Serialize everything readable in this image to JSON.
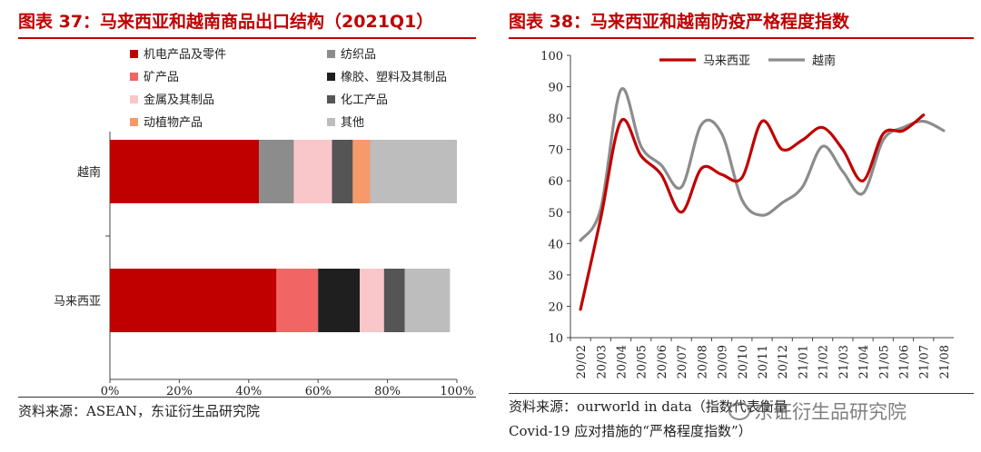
{
  "left_panel": {
    "title": "图表 37：马来西亚和越南商品出口结构（2021Q1）",
    "source": "资料来源：ASEAN，东证衍生品研究院"
  },
  "right_panel": {
    "title": "图表 38：马来西亚和越南防疫严格程度指数",
    "source_line1": "资料来源：ourworld in data（指数代表衡量",
    "source_line2": "Covid-19 应对措施的“严格程度指数”）",
    "watermark": "东证衍生品研究院"
  },
  "chart_data": [
    {
      "type": "bar",
      "orientation": "horizontal",
      "stacked": true,
      "categories": [
        "越南",
        "马来西亚"
      ],
      "xlim": [
        0,
        100
      ],
      "xticks": [
        "0%",
        "20%",
        "40%",
        "60%",
        "80%",
        "100%"
      ],
      "legend_placement": "top-left",
      "series": [
        {
          "name": "机电产品及零件",
          "color": "#c00000",
          "values": [
            43,
            48
          ]
        },
        {
          "name": "纺织品",
          "color": "#8c8c8c",
          "values": [
            10,
            0
          ]
        },
        {
          "name": "矿产品",
          "color": "#f26565",
          "values": [
            0,
            12
          ]
        },
        {
          "name": "橡胶、塑料及其制品",
          "color": "#1f1f1f",
          "values": [
            0,
            12
          ]
        },
        {
          "name": "金属及其制品",
          "color": "#f9c7c9",
          "values": [
            11,
            7
          ]
        },
        {
          "name": "化工产品",
          "color": "#555555",
          "values": [
            6,
            6
          ]
        },
        {
          "name": "动植物产品",
          "color": "#f79a6a",
          "values": [
            5,
            0
          ]
        },
        {
          "name": "其他",
          "color": "#bdbdbd",
          "values": [
            25,
            13
          ]
        }
      ]
    },
    {
      "type": "line",
      "x": [
        "20/02",
        "20/03",
        "20/04",
        "20/05",
        "20/06",
        "20/07",
        "20/08",
        "20/09",
        "20/10",
        "20/11",
        "20/12",
        "21/01",
        "21/02",
        "21/03",
        "21/04",
        "21/05",
        "21/06",
        "21/07",
        "21/08"
      ],
      "ylim": [
        10,
        100
      ],
      "yticks": [
        10,
        20,
        30,
        40,
        50,
        60,
        70,
        80,
        90,
        100
      ],
      "legend_placement": "top-center",
      "series": [
        {
          "name": "马来西亚",
          "color": "#c00000",
          "values": [
            19,
            48,
            79,
            68,
            62,
            50,
            64,
            62,
            61,
            79,
            70,
            73,
            77,
            70,
            60,
            75,
            76,
            81,
            null
          ]
        },
        {
          "name": "越南",
          "color": "#8c8c8c",
          "values": [
            41,
            51,
            89,
            71,
            65,
            58,
            78,
            75,
            54,
            49,
            53,
            58,
            71,
            63,
            56,
            73,
            77,
            79,
            76
          ]
        }
      ]
    }
  ]
}
